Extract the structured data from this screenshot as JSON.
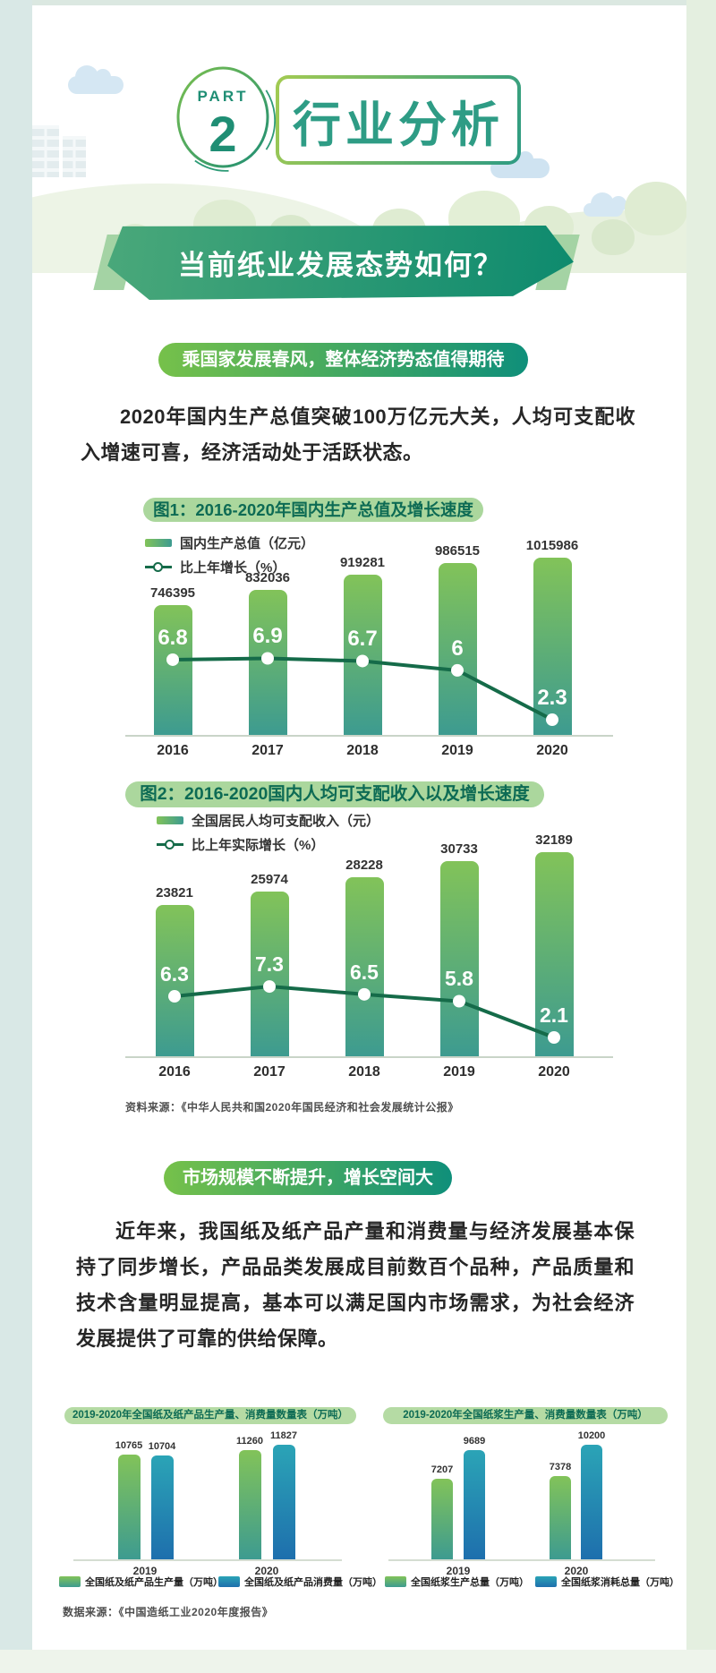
{
  "page": {
    "part_label": "PART",
    "part_number": "2",
    "section_title": "行业分析",
    "banner_title": "当前纸业发展态势如何？"
  },
  "section1": {
    "pill": "乘国家发展春风，整体经济势态值得期待",
    "paragraph": "2020年国内生产总值突破100万亿元大关，人均可支配收入增速可喜，经济活动处于活跃状态。",
    "source": "资料来源：《中华人民共和国2020年国民经济和社会发展统计公报》"
  },
  "section2": {
    "pill": "市场规模不断提升，增长空间大",
    "paragraph": "近年来，我国纸及纸产品产量和消费量与经济发展基本保持了同步增长，产品品类发展成目前数百个品种，产品质量和技术含量明显提高，基本可以满足国内市场需求，为社会经济发展提供了可靠的供给保障。",
    "source": "数据来源：《中国造纸工业2020年度报告》"
  },
  "chart_data": [
    {
      "id": "gdp",
      "type": "bar+line",
      "title": "图1：2016-2020年国内生产总值及增长速度",
      "categories": [
        "2016",
        "2017",
        "2018",
        "2019",
        "2020"
      ],
      "series": [
        {
          "name": "国内生产总值（亿元）",
          "type": "bar",
          "values": [
            746395,
            832036,
            919281,
            986515,
            1015986
          ]
        },
        {
          "name": "比上年增长（%）",
          "type": "line",
          "values": [
            6.8,
            6.9,
            6.7,
            6.0,
            2.3
          ]
        }
      ],
      "legend_position": "top-left",
      "grid": false
    },
    {
      "id": "income",
      "type": "bar+line",
      "title": "图2：2016-2020国内人均可支配收入以及增长速度",
      "categories": [
        "2016",
        "2017",
        "2018",
        "2019",
        "2020"
      ],
      "series": [
        {
          "name": "全国居民人均可支配收入（元）",
          "type": "bar",
          "values": [
            23821,
            25974,
            28228,
            30733,
            32189
          ]
        },
        {
          "name": "比上年实际增长（%）",
          "type": "line",
          "values": [
            6.3,
            7.3,
            6.5,
            5.8,
            2.1
          ]
        }
      ],
      "legend_position": "top-left",
      "grid": false
    },
    {
      "id": "paper",
      "type": "bar",
      "title": "2019-2020年全国纸及纸产品生产量、消费量数量表（万吨）",
      "categories": [
        "2019",
        "2020"
      ],
      "series": [
        {
          "name": "全国纸及纸产品生产量（万吨）",
          "values": [
            10765,
            11260
          ]
        },
        {
          "name": "全国纸及纸产品消费量（万吨）",
          "values": [
            10704,
            11827
          ]
        }
      ],
      "legend_position": "bottom",
      "grid": false
    },
    {
      "id": "pulp",
      "type": "bar",
      "title": "2019-2020年全国纸浆生产量、消费量数量表（万吨）",
      "categories": [
        "2019",
        "2020"
      ],
      "series": [
        {
          "name": "全国纸浆生产总量（万吨）",
          "values": [
            7207,
            7378
          ]
        },
        {
          "name": "全国纸浆消耗总量（万吨）",
          "values": [
            9689,
            10200
          ]
        }
      ],
      "legend_position": "bottom",
      "grid": false
    }
  ],
  "colors": {
    "primary_teal": "#2e9c85",
    "deep_green_line": "#156b49",
    "bar_gradient_top": "#82c359",
    "bar_gradient_bottom": "#3d9b90",
    "blue_bar_top": "#2ba4b6",
    "blue_bar_bottom": "#1e6fad",
    "pill_light_green": "#abd79d",
    "pill_text": "#0d6b54",
    "section_pill_from": "#76c14a",
    "section_pill_to": "#0f8f7a",
    "banner_from": "#4aa87a",
    "banner_to": "#0d8a6e"
  }
}
